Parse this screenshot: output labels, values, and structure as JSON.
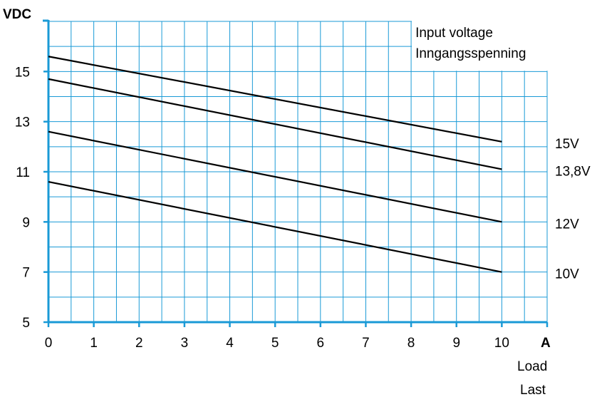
{
  "chart_data": {
    "type": "line",
    "title": "",
    "ylabel": "VDC",
    "xunit": "A",
    "xlabel_lines": [
      "Load",
      "Last"
    ],
    "legend_title_lines": [
      "Input voltage",
      "Inngangsspenning"
    ],
    "xlim": [
      0,
      11
    ],
    "ylim": [
      5,
      17
    ],
    "x_ticks": [
      0,
      1,
      2,
      3,
      4,
      5,
      6,
      7,
      8,
      9,
      10
    ],
    "x_tick_labels": [
      "0",
      "1",
      "2",
      "3",
      "4",
      "5",
      "6",
      "7",
      "8",
      "9",
      "10"
    ],
    "y_ticks": [
      5,
      7,
      9,
      11,
      13,
      15
    ],
    "y_tick_labels": [
      "5",
      "7",
      "9",
      "11",
      "13",
      "15"
    ],
    "grid": true,
    "grid_color": "#1a9ad6",
    "line_color": "#000000",
    "series": [
      {
        "name": "15V",
        "x": [
          0,
          10
        ],
        "y": [
          15.6,
          12.2
        ]
      },
      {
        "name": "13,8V",
        "x": [
          0,
          10
        ],
        "y": [
          14.7,
          11.1
        ]
      },
      {
        "name": "12V",
        "x": [
          0,
          10
        ],
        "y": [
          12.6,
          9.0
        ]
      },
      {
        "name": "10V",
        "x": [
          0,
          10
        ],
        "y": [
          10.6,
          7.0
        ]
      }
    ]
  }
}
